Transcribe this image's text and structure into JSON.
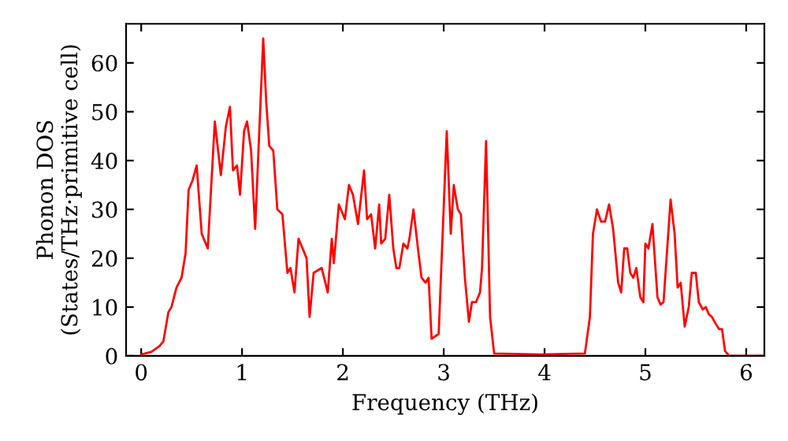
{
  "chart_data": {
    "type": "line",
    "xlabel": "Frequency (THz)",
    "ylabel": "Phonon DOS\n(States/THz·primitive cell)",
    "x": [
      0,
      0.1,
      0.18,
      0.22,
      0.27,
      0.3,
      0.35,
      0.4,
      0.44,
      0.47,
      0.51,
      0.55,
      0.6,
      0.66,
      0.73,
      0.79,
      0.84,
      0.88,
      0.91,
      0.95,
      0.98,
      1.02,
      1.05,
      1.09,
      1.13,
      1.21,
      1.24,
      1.27,
      1.31,
      1.35,
      1.4,
      1.45,
      1.48,
      1.52,
      1.56,
      1.64,
      1.67,
      1.71,
      1.79,
      1.85,
      1.89,
      1.91,
      1.96,
      2.02,
      2.06,
      2.1,
      2.15,
      2.21,
      2.24,
      2.28,
      2.32,
      2.36,
      2.38,
      2.42,
      2.46,
      2.5,
      2.53,
      2.56,
      2.6,
      2.64,
      2.66,
      2.7,
      2.75,
      2.78,
      2.82,
      2.85,
      2.88,
      2.95,
      3.03,
      3.07,
      3.1,
      3.14,
      3.17,
      3.21,
      3.25,
      3.28,
      3.32,
      3.36,
      3.38,
      3.42,
      3.46,
      3.5,
      3.95,
      4.4,
      4.45,
      4.48,
      4.52,
      4.56,
      4.6,
      4.64,
      4.68,
      4.73,
      4.76,
      4.79,
      4.82,
      4.85,
      4.88,
      4.91,
      4.95,
      4.98,
      5.0,
      5.03,
      5.07,
      5.12,
      5.15,
      5.18,
      5.25,
      5.29,
      5.32,
      5.35,
      5.39,
      5.43,
      5.46,
      5.5,
      5.53,
      5.57,
      5.6,
      5.63,
      5.66,
      5.7,
      5.73,
      5.76,
      5.79,
      5.83,
      6.18
    ],
    "series": [
      {
        "color": "#ff0000",
        "values": [
          0.3,
          0.8,
          2,
          3,
          9,
          10,
          14,
          16,
          21,
          34,
          36,
          39,
          25,
          22,
          48,
          37,
          47,
          51,
          38,
          39,
          33,
          46,
          48,
          42,
          26,
          65,
          52,
          43,
          42,
          30,
          29,
          17,
          18,
          13,
          24,
          20,
          8,
          17,
          18,
          13,
          24,
          19,
          31,
          28,
          35,
          33,
          27,
          38,
          28,
          29,
          22,
          31,
          23,
          24,
          33,
          22,
          18,
          18,
          23,
          22,
          24,
          30,
          21,
          16,
          15,
          16,
          3.5,
          4.5,
          46,
          25,
          35,
          30,
          29,
          16,
          7,
          11,
          11,
          13,
          18,
          44,
          8,
          0.5,
          0.3,
          0.5,
          8,
          25,
          30,
          27.5,
          27.5,
          31,
          26,
          15,
          13,
          22,
          22,
          17,
          16,
          18,
          12,
          11,
          23,
          22,
          27,
          12,
          10.5,
          11,
          32,
          25,
          14,
          15,
          6,
          10,
          17,
          17,
          11,
          9.5,
          10,
          8.5,
          8,
          6.5,
          5.5,
          5.5,
          1,
          0,
          0
        ]
      }
    ],
    "xlim": [
      -0.15,
      6.18
    ],
    "ylim": [
      0,
      68
    ],
    "xticks": [
      0,
      1,
      2,
      3,
      4,
      5,
      6
    ],
    "yticks": [
      0,
      10,
      20,
      30,
      40,
      50,
      60
    ],
    "grid": false,
    "legend": false,
    "line_style": "solid",
    "marker": "none"
  }
}
